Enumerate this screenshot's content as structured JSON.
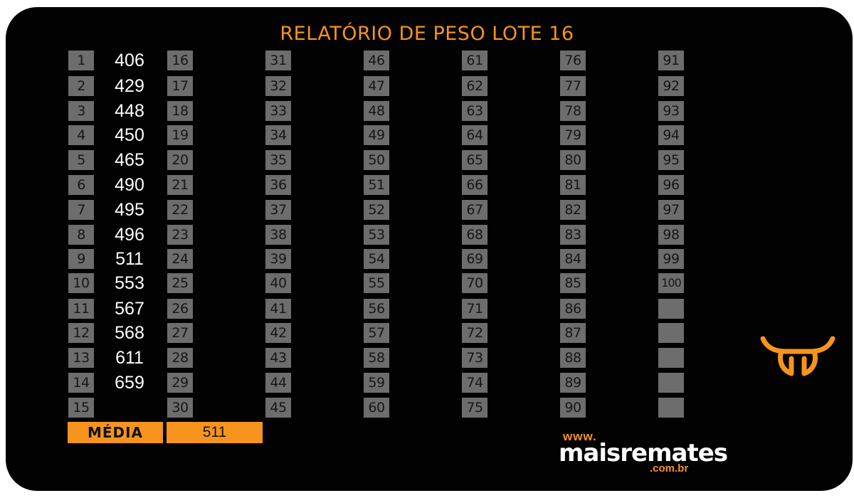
{
  "title": "RELATÓRIO DE PESO LOTE 16",
  "lot_numbers": [
    "1",
    "2",
    "3",
    "4",
    "5",
    "6",
    "7",
    "8",
    "9",
    "10",
    "11",
    "12",
    "13",
    "14",
    "15",
    "16",
    "17",
    "18",
    "19",
    "20",
    "21",
    "22",
    "23",
    "24",
    "25",
    "26",
    "27",
    "28",
    "29",
    "30",
    "31",
    "32",
    "33",
    "34",
    "35",
    "36",
    "37",
    "38",
    "39",
    "40",
    "41",
    "42",
    "43",
    "44",
    "45",
    "46",
    "47",
    "48",
    "49",
    "50",
    "51",
    "52",
    "53",
    "54",
    "55",
    "56",
    "57",
    "58",
    "59",
    "60",
    "61",
    "62",
    "63",
    "64",
    "65",
    "66",
    "67",
    "68",
    "69",
    "70",
    "71",
    "72",
    "73",
    "74",
    "75",
    "76",
    "77",
    "78",
    "79",
    "80",
    "81",
    "82",
    "83",
    "84",
    "85",
    "86",
    "87",
    "88",
    "89",
    "90",
    "91",
    "92",
    "93",
    "94",
    "95",
    "96",
    "97",
    "98",
    "99",
    "100",
    "",
    "",
    "",
    "",
    ""
  ],
  "weights": [
    "406",
    "429",
    "448",
    "450",
    "465",
    "490",
    "495",
    "496",
    "511",
    "553",
    "567",
    "568",
    "611",
    "659"
  ],
  "media": {
    "label": "MÉDIA",
    "value": "511"
  },
  "brand": {
    "www": "www.",
    "name": "maisremates",
    "domain": ".com.br",
    "logo_icon": "bull-head-icon"
  },
  "colors": {
    "accent": "#f7941d",
    "cell": "#6d6d6d",
    "background": "#020202"
  }
}
